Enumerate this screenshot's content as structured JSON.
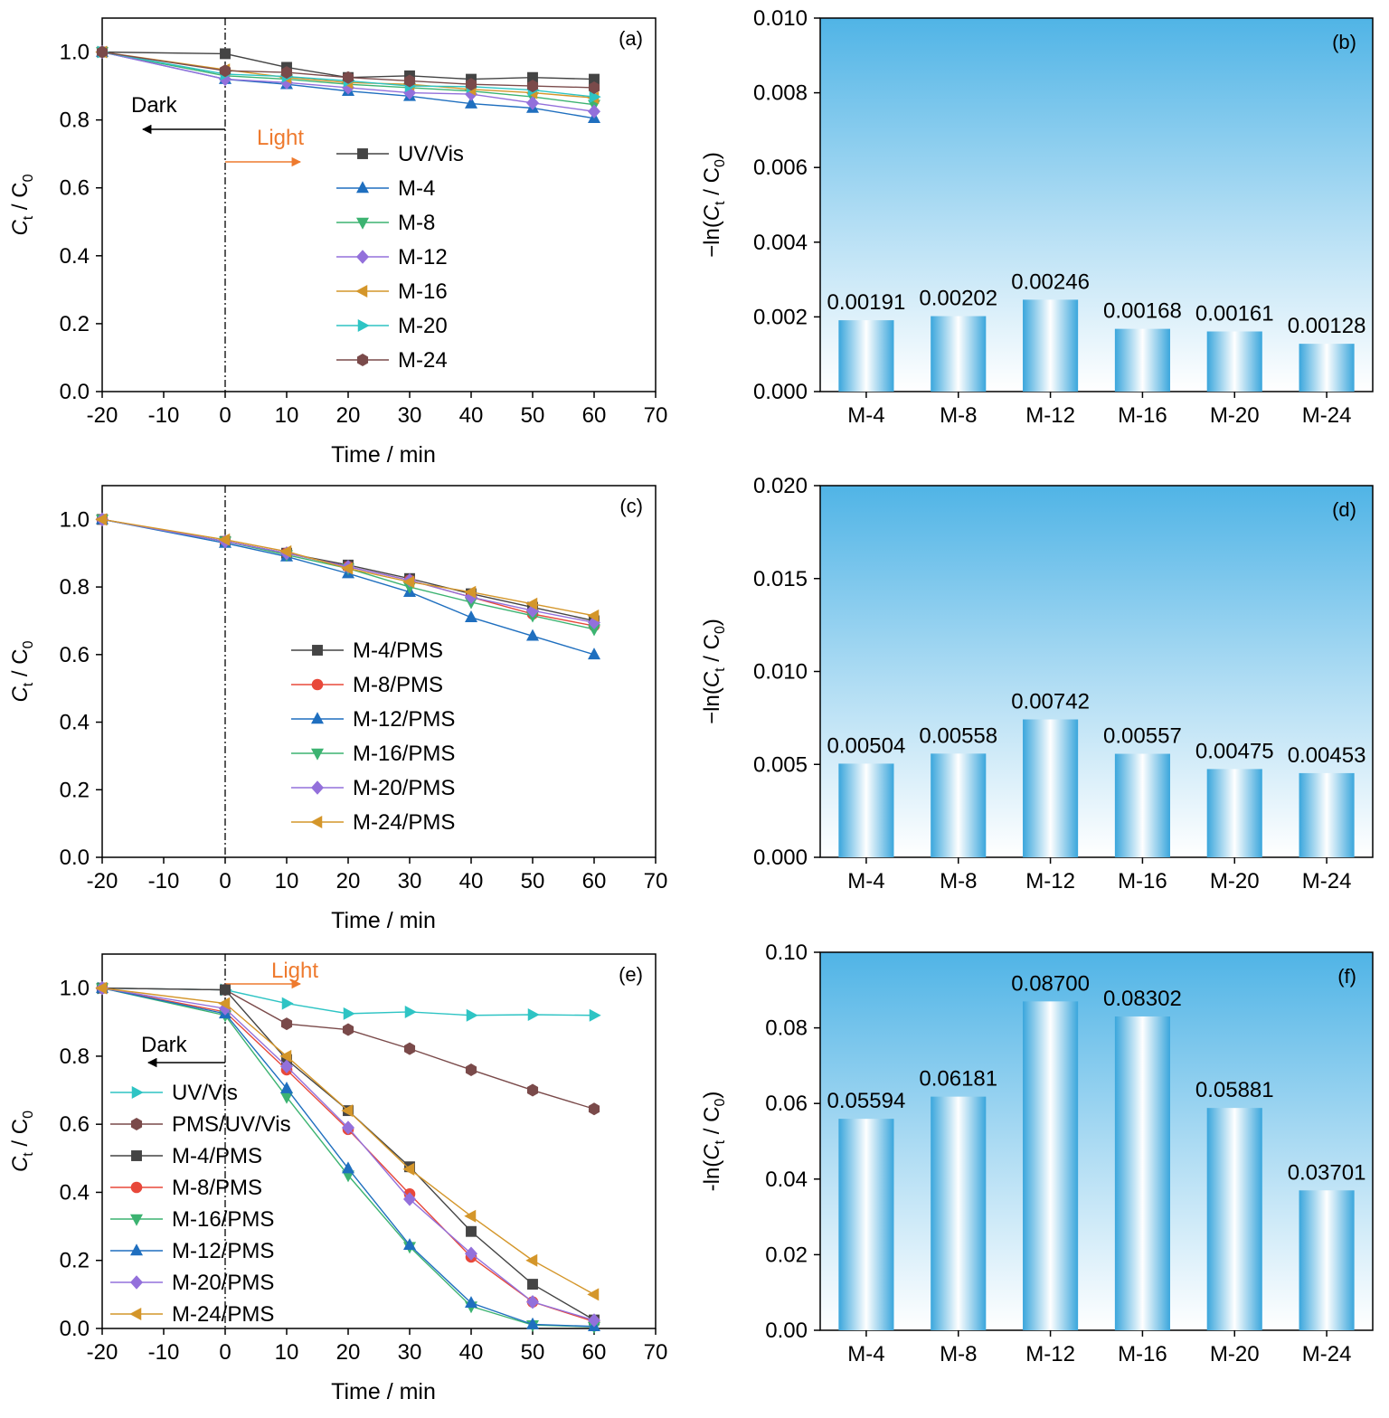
{
  "colors": {
    "uvvis_a": "#444444",
    "m4_a": "#1f6fbf",
    "m8_a": "#3cb371",
    "m12_a": "#9370db",
    "m16_a": "#d4962a",
    "m20_a": "#2ec4c4",
    "m24_a": "#7a4a4a",
    "bar_top": "#50b4e6",
    "arrow_light": "#ee7a2e",
    "arrow_dark": "#000000"
  },
  "chart_data": [
    {
      "panel": "a",
      "type": "line",
      "panel_label": "(a)",
      "xlabel": "Time / min",
      "ylabel_main": "C",
      "ylabel_sub1": "t",
      "ylabel_mid": " / C",
      "ylabel_sub2": "0",
      "xlim": [
        -20,
        70
      ],
      "ylim": [
        0,
        1.1
      ],
      "xticks": [
        -20,
        -10,
        0,
        10,
        20,
        30,
        40,
        50,
        60,
        70
      ],
      "yticks": [
        "0.0",
        "0.2",
        "0.4",
        "0.6",
        "0.8",
        "1.0"
      ],
      "annotations": {
        "dark": "Dark",
        "light": "Light"
      },
      "legend": "right-middle",
      "x": [
        -20,
        0,
        10,
        20,
        30,
        40,
        50,
        60
      ],
      "series": [
        {
          "name": "UV/Vis",
          "marker": "square",
          "color": "#444444",
          "values": [
            1.0,
            0.995,
            0.955,
            0.925,
            0.93,
            0.92,
            0.925,
            0.92
          ]
        },
        {
          "name": "M-4",
          "marker": "triangle-up",
          "color": "#1f6fbf",
          "values": [
            1.0,
            0.92,
            0.905,
            0.885,
            0.87,
            0.848,
            0.835,
            0.805
          ]
        },
        {
          "name": "M-8",
          "marker": "triangle-down",
          "color": "#3cb371",
          "values": [
            1.0,
            0.93,
            0.92,
            0.905,
            0.895,
            0.885,
            0.868,
            0.845
          ]
        },
        {
          "name": "M-12",
          "marker": "diamond",
          "color": "#9370db",
          "values": [
            1.0,
            0.92,
            0.91,
            0.895,
            0.88,
            0.876,
            0.85,
            0.825
          ]
        },
        {
          "name": "M-16",
          "marker": "triangle-left",
          "color": "#d4962a",
          "values": [
            1.0,
            0.948,
            0.925,
            0.91,
            0.905,
            0.89,
            0.88,
            0.865
          ]
        },
        {
          "name": "M-20",
          "marker": "triangle-right",
          "color": "#2ec4c4",
          "values": [
            1.0,
            0.935,
            0.928,
            0.915,
            0.9,
            0.898,
            0.888,
            0.868
          ]
        },
        {
          "name": "M-24",
          "marker": "hexagon",
          "color": "#7a4a4a",
          "values": [
            1.0,
            0.945,
            0.94,
            0.925,
            0.915,
            0.905,
            0.9,
            0.895
          ]
        }
      ]
    },
    {
      "panel": "b",
      "type": "bar",
      "panel_label": "(b)",
      "ylabel_pre": "−ln(",
      "ylabel_main": "C",
      "ylabel_sub1": "t",
      "ylabel_mid": " / C",
      "ylabel_sub2": "0",
      "ylabel_post": ")",
      "ylim": [
        0,
        0.01
      ],
      "yticks": [
        "0.000",
        "0.002",
        "0.004",
        "0.006",
        "0.008",
        "0.010"
      ],
      "categories": [
        "M-4",
        "M-8",
        "M-12",
        "M-16",
        "M-20",
        "M-24"
      ],
      "values": [
        0.00191,
        0.00202,
        0.00246,
        0.00168,
        0.00161,
        0.00128
      ],
      "value_labels": [
        "0.00191",
        "0.00202",
        "0.00246",
        "0.00168",
        "0.00161",
        "0.00128"
      ]
    },
    {
      "panel": "c",
      "type": "line",
      "panel_label": "(c)",
      "xlabel": "Time / min",
      "ylabel_main": "C",
      "ylabel_sub1": "t",
      "ylabel_mid": " / C",
      "ylabel_sub2": "0",
      "xlim": [
        -20,
        70
      ],
      "ylim": [
        0,
        1.1
      ],
      "xticks": [
        -20,
        -10,
        0,
        10,
        20,
        30,
        40,
        50,
        60,
        70
      ],
      "yticks": [
        "0.0",
        "0.2",
        "0.4",
        "0.6",
        "0.8",
        "1.0"
      ],
      "legend": "center-left",
      "x": [
        -20,
        0,
        10,
        20,
        30,
        40,
        50,
        60
      ],
      "series": [
        {
          "name": "M-4/PMS",
          "marker": "square",
          "color": "#444444",
          "values": [
            1.0,
            0.935,
            0.9,
            0.865,
            0.825,
            0.78,
            0.74,
            0.7
          ]
        },
        {
          "name": "M-8/PMS",
          "marker": "circle",
          "color": "#e8483a",
          "values": [
            1.0,
            0.935,
            0.9,
            0.86,
            0.82,
            0.77,
            0.72,
            0.685
          ]
        },
        {
          "name": "M-12/PMS",
          "marker": "triangle-up",
          "color": "#1f6fbf",
          "values": [
            1.0,
            0.93,
            0.89,
            0.84,
            0.785,
            0.71,
            0.655,
            0.6
          ]
        },
        {
          "name": "M-16/PMS",
          "marker": "triangle-down",
          "color": "#3cb371",
          "values": [
            1.0,
            0.935,
            0.895,
            0.855,
            0.8,
            0.755,
            0.715,
            0.675
          ]
        },
        {
          "name": "M-20/PMS",
          "marker": "diamond",
          "color": "#9370db",
          "values": [
            1.0,
            0.935,
            0.9,
            0.86,
            0.82,
            0.77,
            0.73,
            0.695
          ]
        },
        {
          "name": "M-24/PMS",
          "marker": "triangle-left",
          "color": "#d4962a",
          "values": [
            1.0,
            0.94,
            0.905,
            0.855,
            0.815,
            0.785,
            0.75,
            0.715
          ]
        }
      ]
    },
    {
      "panel": "d",
      "type": "bar",
      "panel_label": "(d)",
      "ylabel_pre": "−ln(",
      "ylabel_main": "C",
      "ylabel_sub1": "t",
      "ylabel_mid": " / C",
      "ylabel_sub2": "0",
      "ylabel_post": ")",
      "ylim": [
        0,
        0.02
      ],
      "yticks": [
        "0.000",
        "0.005",
        "0.010",
        "0.015",
        "0.020"
      ],
      "categories": [
        "M-4",
        "M-8",
        "M-12",
        "M-16",
        "M-20",
        "M-24"
      ],
      "values": [
        0.00504,
        0.00558,
        0.00742,
        0.00557,
        0.00475,
        0.00453
      ],
      "value_labels": [
        "0.00504",
        "0.00558",
        "0.00742",
        "0.00557",
        "0.00475",
        "0.00453"
      ]
    },
    {
      "panel": "e",
      "type": "line",
      "panel_label": "(e)",
      "xlabel": "Time / min",
      "ylabel_main": "C",
      "ylabel_sub1": "t",
      "ylabel_mid": " / C",
      "ylabel_sub2": "0",
      "xlim": [
        -20,
        70
      ],
      "ylim": [
        0,
        1.1
      ],
      "xticks": [
        -20,
        -10,
        0,
        10,
        20,
        30,
        40,
        50,
        60,
        70
      ],
      "yticks": [
        "0.0",
        "0.2",
        "0.4",
        "0.6",
        "0.8",
        "1.0"
      ],
      "annotations": {
        "dark": "Dark",
        "light": "Light"
      },
      "legend": "bottom-left",
      "x": [
        -20,
        0,
        10,
        20,
        30,
        40,
        50,
        60
      ],
      "series": [
        {
          "name": "UV/Vis",
          "marker": "triangle-right",
          "color": "#2ec4c4",
          "values": [
            1.0,
            0.995,
            0.955,
            0.925,
            0.93,
            0.92,
            0.922,
            0.92
          ]
        },
        {
          "name": "PMS/UV/Vis",
          "marker": "hexagon",
          "color": "#7a4a4a",
          "values": [
            1.0,
            0.995,
            0.895,
            0.878,
            0.822,
            0.76,
            0.7,
            0.645
          ]
        },
        {
          "name": "M-4/PMS",
          "marker": "square",
          "color": "#444444",
          "values": [
            1.0,
            0.995,
            0.79,
            0.64,
            0.475,
            0.285,
            0.13,
            0.025
          ]
        },
        {
          "name": "M-8/PMS",
          "marker": "circle",
          "color": "#e8483a",
          "values": [
            1.0,
            0.93,
            0.76,
            0.585,
            0.395,
            0.21,
            0.078,
            0.02
          ]
        },
        {
          "name": "M-16/PMS",
          "marker": "triangle-down",
          "color": "#3cb371",
          "values": [
            1.0,
            0.92,
            0.68,
            0.45,
            0.24,
            0.065,
            0.01,
            0.005
          ]
        },
        {
          "name": "M-12/PMS",
          "marker": "triangle-up",
          "color": "#1f6fbf",
          "values": [
            1.0,
            0.925,
            0.705,
            0.47,
            0.245,
            0.075,
            0.012,
            0.006
          ]
        },
        {
          "name": "M-20/PMS",
          "marker": "diamond",
          "color": "#9370db",
          "values": [
            1.0,
            0.94,
            0.77,
            0.59,
            0.38,
            0.22,
            0.078,
            0.024
          ]
        },
        {
          "name": "M-24/PMS",
          "marker": "triangle-left",
          "color": "#d4962a",
          "values": [
            1.0,
            0.955,
            0.8,
            0.64,
            0.468,
            0.33,
            0.2,
            0.1
          ]
        }
      ]
    },
    {
      "panel": "f",
      "type": "bar",
      "panel_label": "(f)",
      "ylabel_pre": "-ln(",
      "ylabel_main": "C",
      "ylabel_sub1": "t",
      "ylabel_mid": " / C",
      "ylabel_sub2": "0",
      "ylabel_post": ")",
      "ylim": [
        0,
        0.1
      ],
      "yticks": [
        "0.00",
        "0.02",
        "0.04",
        "0.06",
        "0.08",
        "0.10"
      ],
      "categories": [
        "M-4",
        "M-8",
        "M-12",
        "M-16",
        "M-20",
        "M-24"
      ],
      "values": [
        0.05594,
        0.06181,
        0.087,
        0.08302,
        0.05881,
        0.03701
      ],
      "value_labels": [
        "0.05594",
        "0.06181",
        "0.08700",
        "0.08302",
        "0.05881",
        "0.03701"
      ]
    }
  ]
}
